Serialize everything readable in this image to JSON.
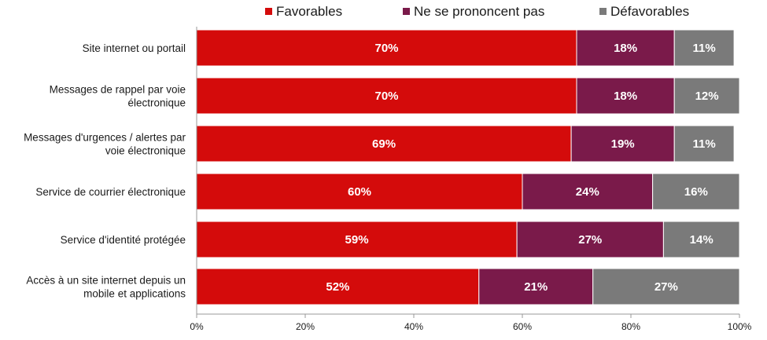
{
  "chart_data": {
    "type": "bar",
    "orientation": "horizontal",
    "stacked": true,
    "categories": [
      [
        "Site internet ou portail"
      ],
      [
        "Messages de rappel par voie",
        "électronique"
      ],
      [
        "Messages d'urgences / alertes par",
        "voie électronique"
      ],
      [
        "Service de courrier électronique"
      ],
      [
        "Service d'identité protégée"
      ],
      [
        "Accès à un site internet depuis un",
        "mobile et applications"
      ]
    ],
    "series": [
      {
        "name": "Favorables",
        "color": "#d40b0b",
        "values": [
          70,
          70,
          69,
          60,
          59,
          52
        ]
      },
      {
        "name": "Ne se prononcent pas",
        "color": "#7a1a4a",
        "values": [
          18,
          18,
          19,
          24,
          27,
          21
        ]
      },
      {
        "name": "Défavorables",
        "color": "#7a7a7a",
        "values": [
          11,
          12,
          11,
          16,
          14,
          27
        ]
      }
    ],
    "xlim": [
      0,
      100
    ],
    "xticks": [
      "0%",
      "20%",
      "40%",
      "60%",
      "80%",
      "100%"
    ],
    "legend_position": "top",
    "grid": false
  }
}
